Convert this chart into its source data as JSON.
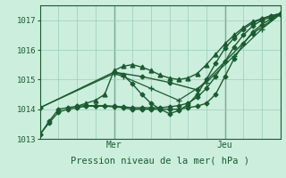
{
  "xlabel": "Pression niveau de la mer( hPa )",
  "ylim": [
    1013.0,
    1017.5
  ],
  "yticks": [
    1013,
    1014,
    1015,
    1016,
    1017
  ],
  "bg_color": "#cceedd",
  "grid_color": "#99ccbb",
  "line_color": "#1a5c30",
  "vline_color": "#2d6e3e",
  "x_day_labels": [
    {
      "label": "Mer",
      "x": 96
    },
    {
      "label": "Jeu",
      "x": 240
    }
  ],
  "xlim": [
    0,
    312
  ],
  "vlines": [
    96,
    240
  ],
  "lines": [
    {
      "x": [
        0,
        12,
        24,
        36,
        48,
        60,
        72,
        84,
        96,
        108,
        120,
        132,
        144,
        156,
        168,
        180,
        192,
        204,
        216,
        228,
        240,
        252,
        264,
        276,
        288,
        300,
        312
      ],
      "y": [
        1013.15,
        1013.55,
        1013.9,
        1014.0,
        1014.05,
        1014.1,
        1014.1,
        1014.1,
        1014.08,
        1014.05,
        1014.0,
        1014.0,
        1014.0,
        1014.0,
        1014.0,
        1014.0,
        1014.05,
        1014.1,
        1014.2,
        1014.5,
        1015.1,
        1015.7,
        1016.2,
        1016.6,
        1016.85,
        1017.05,
        1017.2
      ],
      "marker": "D",
      "ms": 2.5,
      "lw": 1.0
    },
    {
      "x": [
        0,
        12,
        24,
        36,
        48,
        60,
        72,
        84,
        96,
        108,
        120,
        132,
        144,
        156,
        168,
        180,
        192,
        204,
        216,
        228,
        240,
        252,
        264,
        276,
        288,
        300,
        312
      ],
      "y": [
        1013.15,
        1013.6,
        1014.0,
        1014.05,
        1014.1,
        1014.12,
        1014.12,
        1014.12,
        1014.1,
        1014.08,
        1014.05,
        1014.05,
        1014.05,
        1014.05,
        1014.08,
        1014.12,
        1014.2,
        1014.4,
        1014.7,
        1015.1,
        1015.6,
        1016.1,
        1016.5,
        1016.8,
        1017.0,
        1017.1,
        1017.2
      ],
      "marker": "D",
      "ms": 2.5,
      "lw": 1.0
    },
    {
      "x": [
        48,
        60,
        72,
        84,
        96,
        108,
        120,
        132,
        144,
        156,
        168,
        180,
        192,
        204,
        216,
        228,
        240,
        252,
        264,
        276,
        288,
        300,
        312
      ],
      "y": [
        1014.1,
        1014.2,
        1014.3,
        1014.5,
        1015.3,
        1015.45,
        1015.5,
        1015.42,
        1015.3,
        1015.15,
        1015.05,
        1015.0,
        1015.05,
        1015.2,
        1015.5,
        1015.85,
        1016.2,
        1016.5,
        1016.75,
        1016.95,
        1017.05,
        1017.15,
        1017.22
      ],
      "marker": "^",
      "ms": 3.5,
      "lw": 1.0
    },
    {
      "x": [
        96,
        108,
        120,
        132,
        144,
        156,
        168,
        180,
        192,
        204,
        216,
        228,
        240,
        252,
        264,
        276,
        288,
        300,
        312
      ],
      "y": [
        1015.25,
        1015.15,
        1014.85,
        1014.5,
        1014.2,
        1014.0,
        1013.85,
        1013.95,
        1014.15,
        1014.5,
        1015.0,
        1015.55,
        1016.05,
        1016.4,
        1016.7,
        1016.9,
        1017.05,
        1017.15,
        1017.22
      ],
      "marker": "D",
      "ms": 2.5,
      "lw": 1.0
    },
    {
      "x": [
        0,
        96,
        132,
        168,
        204,
        240,
        276,
        312
      ],
      "y": [
        1014.05,
        1015.25,
        1015.1,
        1014.9,
        1014.65,
        1015.6,
        1016.55,
        1017.2
      ],
      "marker": "D",
      "ms": 2.5,
      "lw": 1.0
    },
    {
      "x": [
        0,
        96,
        108,
        144,
        180,
        216,
        252,
        288,
        312
      ],
      "y": [
        1014.05,
        1015.2,
        1015.1,
        1014.7,
        1014.3,
        1014.9,
        1015.8,
        1016.7,
        1017.2
      ],
      "marker": "+",
      "ms": 4,
      "lw": 0.9
    }
  ]
}
